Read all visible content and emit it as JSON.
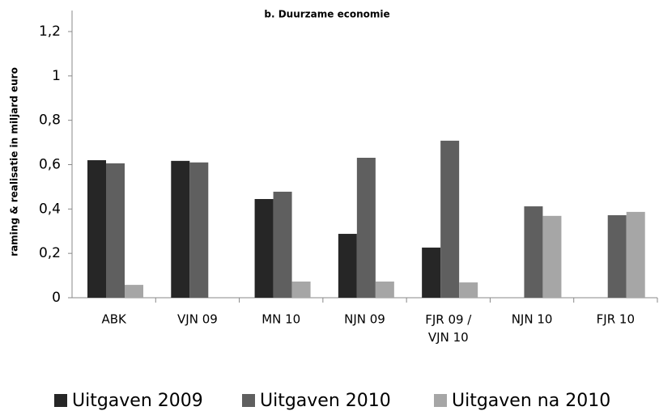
{
  "chart_data": {
    "type": "bar",
    "title": "b. Duurzame economie",
    "y_label": "raming & realisatie in miljard euro",
    "categories": [
      "ABK",
      "VJN 09",
      "MN 10",
      "NJN 09",
      "FJR 09 / VJN 10",
      "NJN 10",
      "FJR 10"
    ],
    "series": [
      {
        "name": "Uitgaven 2009",
        "color": "#262626",
        "values": [
          0.62,
          0.617,
          0.445,
          0.288,
          0.226,
          0,
          0
        ]
      },
      {
        "name": "Uitgaven 2010",
        "color": "#5f5f5f",
        "values": [
          0.606,
          0.61,
          0.478,
          0.631,
          0.708,
          0.412,
          0.372
        ]
      },
      {
        "name": "Uitgaven na 2010",
        "color": "#a6a6a6",
        "values": [
          0.058,
          0,
          0.073,
          0.073,
          0.069,
          0.369,
          0.387
        ]
      }
    ],
    "ylim": [
      0,
      1.2
    ],
    "yticks": [
      0,
      {
        "value": 0.2,
        "label": "0,2"
      },
      {
        "value": 0.4,
        "label": "0,4"
      },
      {
        "value": 0.6,
        "label": "0,6"
      },
      {
        "value": 0.8,
        "label": "0,8"
      },
      1,
      {
        "value": 1.2,
        "label": "1,2"
      }
    ],
    "legend": "bottom"
  }
}
